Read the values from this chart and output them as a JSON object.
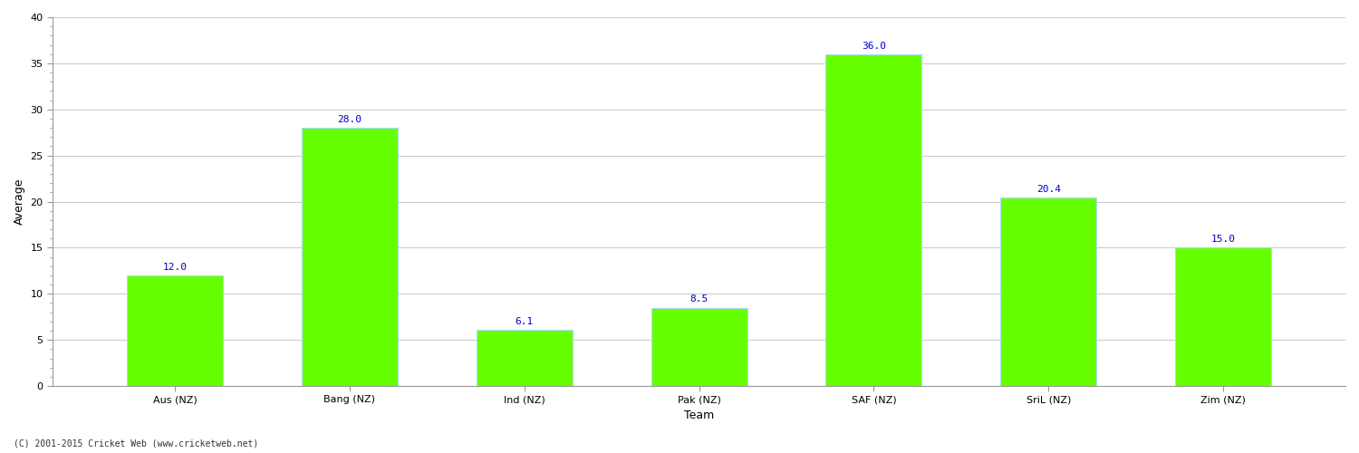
{
  "show_title": false,
  "categories": [
    "Aus (NZ)",
    "Bang (NZ)",
    "Ind (NZ)",
    "Pak (NZ)",
    "SAF (NZ)",
    "SriL (NZ)",
    "Zim (NZ)"
  ],
  "values": [
    12.0,
    28.0,
    6.1,
    8.5,
    36.0,
    20.4,
    15.0
  ],
  "bar_color": "#66ff00",
  "bar_edge_color": "#aaddff",
  "bar_edge_width": 0.8,
  "value_color": "#0000cc",
  "xlabel": "Team",
  "ylabel": "Average",
  "ylim": [
    0,
    40
  ],
  "yticks": [
    0,
    5,
    10,
    15,
    20,
    25,
    30,
    35,
    40
  ],
  "grid_color": "#cccccc",
  "background_color": "#ffffff",
  "footnote": "(C) 2001-2015 Cricket Web (www.cricketweb.net)",
  "label_fontsize": 9,
  "tick_fontsize": 8,
  "value_fontsize": 8,
  "bar_width": 0.55
}
